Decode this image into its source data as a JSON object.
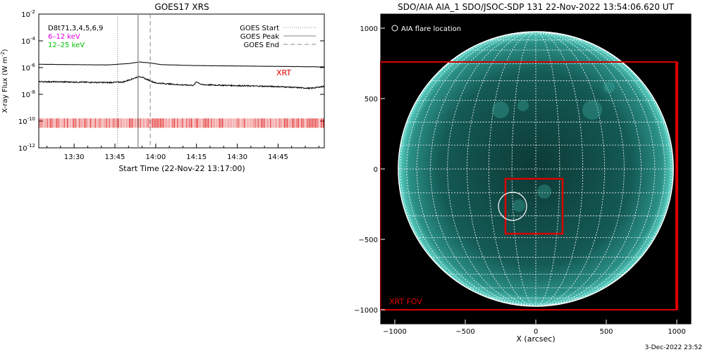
{
  "left": {
    "title": "GOES17 XRS",
    "legend_lines": [
      {
        "text": "D8t71,3,4,5,6,9",
        "color": "#000000"
      },
      {
        "text": "6–12 keV",
        "color": "#e000e0"
      },
      {
        "text": "12–25 keV",
        "color": "#00c000"
      }
    ],
    "marker_legend": [
      {
        "text": "GOES Start",
        "style": "dotted"
      },
      {
        "text": "GOES Peak",
        "style": "solid"
      },
      {
        "text": "GOES End",
        "style": "dashed"
      }
    ],
    "xrt_label": "XRT",
    "xlabel": "Start Time (22-Nov-22 13:17:00)"
  },
  "right": {
    "title": "SDO/AIA AIA_1 SDO/JSOC-SDP 131 22-Nov-2022 13:54:06.620 UT",
    "flare_legend": "AIA flare location",
    "xrt_fov_label": "XRT FOV",
    "xlabel": "X (arcsec)"
  },
  "footer": "3-Dec-2022 23:52",
  "colors": {
    "xrt_red": "#dd0000",
    "sun_teal": "#3fb3a7",
    "grid": "#ffffff"
  },
  "chart_data": [
    {
      "type": "line",
      "title": "GOES17 XRS",
      "xlabel": "Start Time (22-Nov-22 13:17:00)",
      "ylabel": "X-ray Flux (W m^-2)",
      "ylabel_main": "X-ray Flux (W m",
      "ylabel_sup": "-2",
      "ylabel_tail": ")",
      "y_scale": "log",
      "ylim": [
        1e-12,
        0.01
      ],
      "yticks": [
        -12,
        -10,
        -8,
        -6,
        -4,
        -2
      ],
      "xlim_min": [
        17,
        122
      ],
      "xticks": [
        {
          "min": 30,
          "label": "13:30"
        },
        {
          "min": 45,
          "label": "13:45"
        },
        {
          "min": 60,
          "label": "14:00"
        },
        {
          "min": 75,
          "label": "14:15"
        },
        {
          "min": 90,
          "label": "14:30"
        },
        {
          "min": 105,
          "label": "14:45"
        }
      ],
      "series": [
        {
          "name": "",
          "color": "#000000",
          "points_min_log": [
            [
              17,
              -5.75
            ],
            [
              30,
              -5.78
            ],
            [
              42,
              -5.8
            ],
            [
              50,
              -5.7
            ],
            [
              54,
              -5.58
            ],
            [
              58,
              -5.65
            ],
            [
              62,
              -5.78
            ],
            [
              75,
              -5.85
            ],
            [
              90,
              -5.88
            ],
            [
              105,
              -5.91
            ],
            [
              122,
              -5.95
            ]
          ]
        },
        {
          "name": "",
          "color": "#000000",
          "points_min_log": [
            [
              17,
              -7.05
            ],
            [
              30,
              -7.08
            ],
            [
              42,
              -7.12
            ],
            [
              48,
              -7.08
            ],
            [
              52,
              -6.8
            ],
            [
              54,
              -6.65
            ],
            [
              57,
              -6.9
            ],
            [
              60,
              -7.15
            ],
            [
              70,
              -7.3
            ],
            [
              74,
              -7.32
            ],
            [
              75,
              -7.05
            ],
            [
              77,
              -7.28
            ],
            [
              90,
              -7.35
            ],
            [
              105,
              -7.42
            ],
            [
              117,
              -7.55
            ],
            [
              122,
              -7.4
            ]
          ]
        }
      ],
      "markers_min": {
        "start": 46,
        "peak": 53.5,
        "end": 58
      },
      "xrt_band_log": [
        -10.5,
        -9.8
      ]
    },
    {
      "type": "image",
      "title": "SDO/AIA AIA_1 SDO/JSOC-SDP 131 22-Nov-2022 13:54:06.620 UT",
      "xlabel": "X (arcsec)",
      "xlim": [
        -1100,
        1100
      ],
      "ylim": [
        -1100,
        1100
      ],
      "xticks": [
        -1000,
        -500,
        0,
        500,
        1000
      ],
      "yticks": [
        -1000,
        -500,
        0,
        500,
        1000
      ],
      "sun_radius_arcsec": 975,
      "xrt_fov": {
        "x": [
          -1100,
          1000
        ],
        "y": [
          -1000,
          760
        ]
      },
      "inner_box": {
        "x": [
          -215,
          190
        ],
        "y": [
          -460,
          -70
        ]
      },
      "flare_circle": {
        "x": -165,
        "y": -265,
        "r": 100
      }
    }
  ]
}
